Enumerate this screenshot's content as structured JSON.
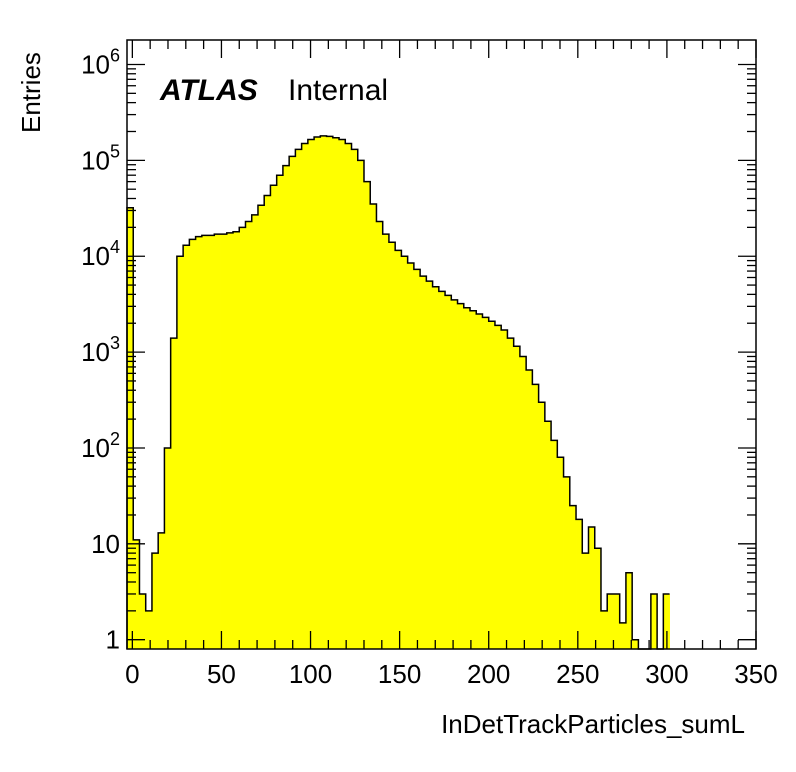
{
  "chart_data": {
    "type": "bar",
    "histogram": true,
    "fill_color": "#ffff00",
    "edge_color": "#000000",
    "xlabel": "InDetTrackParticles_sumL",
    "ylabel": "Entries",
    "log_y": true,
    "xlim": [
      -3,
      350
    ],
    "ylim": [
      0.8,
      1800000
    ],
    "x_ticks": [
      0,
      50,
      100,
      150,
      200,
      250,
      300,
      350
    ],
    "x_tick_labels": [
      "0",
      "50",
      "100",
      "150",
      "200",
      "250",
      "300",
      "350"
    ],
    "y_ticks": [
      1,
      10,
      100,
      1000,
      10000,
      100000,
      1000000
    ],
    "y_tick_labels": [
      {
        "base": "1",
        "exp": ""
      },
      {
        "base": "10",
        "exp": ""
      },
      {
        "base": "10",
        "exp": "2"
      },
      {
        "base": "10",
        "exp": "3"
      },
      {
        "base": "10",
        "exp": "4"
      },
      {
        "base": "10",
        "exp": "5"
      },
      {
        "base": "10",
        "exp": "6"
      }
    ],
    "bin_edges_start": -3,
    "bin_width": 3.5,
    "values": [
      32000,
      11,
      3,
      2,
      8,
      13,
      100,
      1400,
      10000,
      13000,
      15000,
      16000,
      16500,
      16500,
      17000,
      17000,
      17500,
      18000,
      20000,
      23000,
      27000,
      34000,
      43000,
      55000,
      70000,
      88000,
      110000,
      130000,
      150000,
      165000,
      175000,
      180000,
      178000,
      172000,
      165000,
      150000,
      130000,
      100000,
      60000,
      35000,
      23000,
      17000,
      14000,
      11500,
      10000,
      8500,
      7300,
      6200,
      5500,
      4800,
      4300,
      3900,
      3500,
      3200,
      2900,
      2700,
      2500,
      2300,
      2100,
      1900,
      1700,
      1400,
      1150,
      900,
      650,
      460,
      300,
      190,
      120,
      80,
      50,
      25,
      18,
      8,
      15,
      9,
      2,
      3,
      3,
      1.5,
      5,
      1,
      0,
      0,
      3,
      0,
      3
    ],
    "annotations": {
      "atlas": "ATLAS",
      "status": "Internal"
    }
  }
}
